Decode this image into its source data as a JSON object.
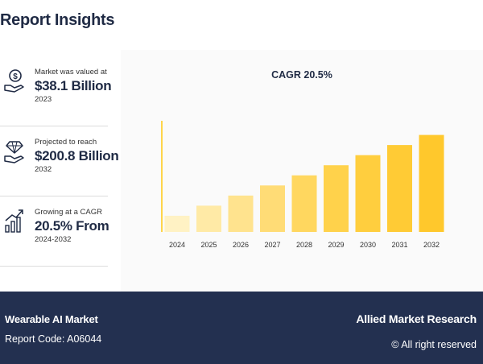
{
  "header": {
    "title": "Report Insights"
  },
  "stats": [
    {
      "label": "Market was valued at",
      "value": "$38.1 Billion",
      "year": "2023",
      "icon": "money-hand-icon"
    },
    {
      "label": "Projected to reach",
      "value": "$200.8 Billion",
      "year": "2032",
      "icon": "diamond-hand-icon"
    },
    {
      "label": "Growing at a CAGR",
      "value": "20.5% From",
      "year": "2024-2032",
      "icon": "growth-chart-icon"
    }
  ],
  "chart_data": {
    "type": "bar",
    "title": "CAGR 20.5%",
    "categories": [
      "2024",
      "2025",
      "2026",
      "2027",
      "2028",
      "2029",
      "2030",
      "2031",
      "2032"
    ],
    "values": [
      1.6,
      2.6,
      3.6,
      4.6,
      5.6,
      6.6,
      7.6,
      8.6,
      9.6
    ],
    "colors": [
      "#fff2c4",
      "#ffeaa6",
      "#ffe38e",
      "#ffdc76",
      "#ffd75f",
      "#ffd24b",
      "#ffce3e",
      "#ffcb35",
      "#ffc82c"
    ],
    "axis_color": "#ffd54a",
    "ylim": [
      0,
      11
    ],
    "xlabel": "",
    "ylabel": "",
    "grid": false
  },
  "footer": {
    "report_name": "Wearable AI Market",
    "report_code": "Report Code: A06044",
    "brand": "Allied Market Research",
    "rights": "© All right reserved"
  }
}
